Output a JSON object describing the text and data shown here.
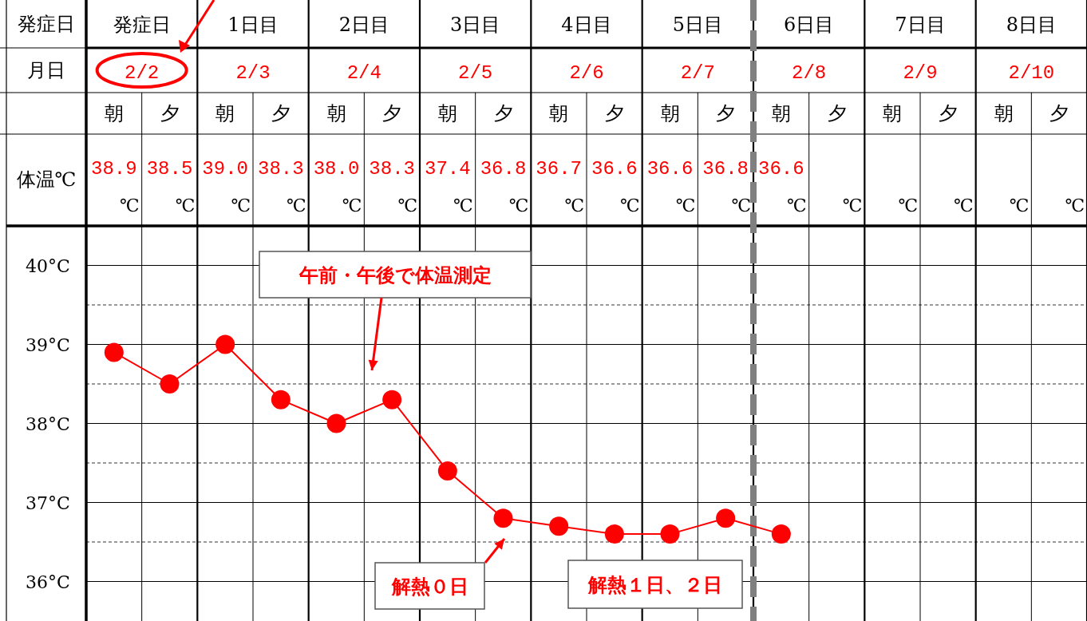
{
  "chart_data": {
    "type": "line",
    "categories": [
      "朝",
      "夕",
      "朝",
      "夕",
      "朝",
      "夕",
      "朝",
      "夕",
      "朝",
      "夕",
      "朝",
      "夕",
      "朝",
      "夕",
      "朝",
      "夕",
      "朝",
      "夕"
    ],
    "series": [
      {
        "color": "#ff0000",
        "values": [
          38.9,
          38.5,
          39.0,
          38.3,
          38.0,
          38.3,
          37.4,
          36.8,
          36.7,
          36.6,
          36.6,
          36.8,
          36.6,
          null,
          null,
          null,
          null,
          null
        ],
        "value_labels": [
          "38.9",
          "38.5",
          "39.0",
          "38.3",
          "38.0",
          "38.3",
          "37.4",
          "36.8",
          "36.7",
          "36.6",
          "36.6",
          "36.8",
          "36.6",
          null,
          null,
          null,
          null,
          null
        ]
      }
    ],
    "ylim": [
      35.5,
      40.5
    ],
    "yticks": [
      {
        "value": 36,
        "label": "36°C"
      },
      {
        "value": 36.5,
        "label": null
      },
      {
        "value": 37,
        "label": "37°C"
      },
      {
        "value": 37.5,
        "label": null
      },
      {
        "value": 38,
        "label": "38°C"
      },
      {
        "value": 38.5,
        "label": null
      },
      {
        "value": 39,
        "label": "39°C"
      },
      {
        "value": 39.5,
        "label": null
      },
      {
        "value": 40,
        "label": "40°C"
      }
    ],
    "grid": true,
    "marker": "circle",
    "line_style": "solid",
    "annotations": [
      "発症日",
      "月日",
      "体温℃",
      "発症日",
      "1日目",
      "2日目",
      "3日目",
      "4日目",
      "5日目",
      "6日目",
      "7日目",
      "8日目",
      "2/2",
      "2/3",
      "2/4",
      "2/5",
      "2/6",
      "2/7",
      "2/8",
      "2/9",
      "2/10",
      "℃",
      "℃",
      "℃",
      "℃",
      "℃",
      "℃",
      "℃",
      "℃",
      "℃",
      "℃",
      "℃",
      "℃",
      "℃",
      "℃",
      "℃",
      "℃",
      "℃",
      "℃",
      "午前・午後で体温測定",
      "解熱０日",
      "解熱１日、２日"
    ]
  }
}
